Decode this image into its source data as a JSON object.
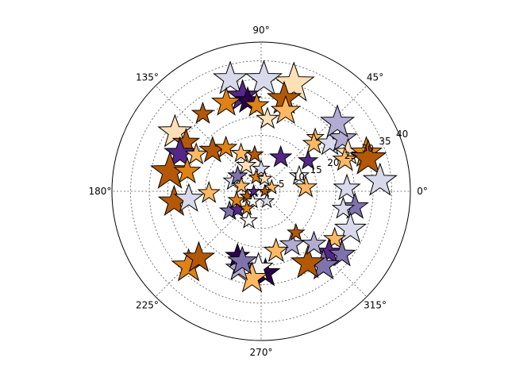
{
  "chart_data": {
    "type": "scatter",
    "projection": "polar",
    "marker": "star",
    "colormap": "PuOr",
    "r_lim": [
      0,
      40
    ],
    "r_ticks": [
      5,
      10,
      15,
      20,
      25,
      30,
      35,
      40
    ],
    "r_tick_labels": [
      "5",
      "10",
      "15",
      "20",
      "25",
      "30",
      "35",
      "40"
    ],
    "theta_ticks_deg": [
      0,
      45,
      90,
      135,
      180,
      225,
      270,
      315
    ],
    "theta_tick_labels": [
      "0°",
      "45°",
      "90°",
      "135°",
      "180°",
      "225°",
      "270°",
      "315°"
    ],
    "grid": true,
    "palette": [
      "#2d004b",
      "#542788",
      "#8073ac",
      "#b2abd2",
      "#d8daeb",
      "#f7f7f7",
      "#fee0b6",
      "#fdb863",
      "#e08214",
      "#b35806"
    ],
    "points": [
      {
        "theta": 73.1,
        "r": 30.2,
        "color": "#fee0b6",
        "size": 34
      },
      {
        "theta": 88.6,
        "r": 30.0,
        "color": "#d8daeb",
        "size": 30
      },
      {
        "theta": 105.4,
        "r": 31.2,
        "color": "#d8daeb",
        "size": 28
      },
      {
        "theta": 101.0,
        "r": 26.0,
        "color": "#542788",
        "size": 26
      },
      {
        "theta": 98.5,
        "r": 24.5,
        "color": "#2d004b",
        "size": 22
      },
      {
        "theta": 111.5,
        "r": 25.5,
        "color": "#e08214",
        "size": 24
      },
      {
        "theta": 93.0,
        "r": 23.0,
        "color": "#e08214",
        "size": 20
      },
      {
        "theta": 76.0,
        "r": 25.5,
        "color": "#b35806",
        "size": 28
      },
      {
        "theta": 73.0,
        "r": 22.5,
        "color": "#fdb863",
        "size": 24
      },
      {
        "theta": 85.0,
        "r": 19.5,
        "color": "#fee0b6",
        "size": 18
      },
      {
        "theta": 127.0,
        "r": 26.0,
        "color": "#b35806",
        "size": 18
      },
      {
        "theta": 145.6,
        "r": 28.0,
        "color": "#fee0b6",
        "size": 28
      },
      {
        "theta": 147.0,
        "r": 24.0,
        "color": "#b35806",
        "size": 22
      },
      {
        "theta": 155.0,
        "r": 24.0,
        "color": "#542788",
        "size": 26
      },
      {
        "theta": 150.5,
        "r": 20.0,
        "color": "#fdb863",
        "size": 18
      },
      {
        "theta": 140.0,
        "r": 17.0,
        "color": "#b35806",
        "size": 22
      },
      {
        "theta": 129.0,
        "r": 15.0,
        "color": "#e08214",
        "size": 18
      },
      {
        "theta": 168.0,
        "r": 25.0,
        "color": "#b35806",
        "size": 32
      },
      {
        "theta": 165.0,
        "r": 20.5,
        "color": "#e08214",
        "size": 22
      },
      {
        "theta": 187.0,
        "r": 23.5,
        "color": "#b35806",
        "size": 26
      },
      {
        "theta": 186.0,
        "r": 19.5,
        "color": "#d8daeb",
        "size": 24
      },
      {
        "theta": 182.0,
        "r": 14.0,
        "color": "#fdb863",
        "size": 18
      },
      {
        "theta": 160.0,
        "r": 8.0,
        "color": "#d8daeb",
        "size": 16
      },
      {
        "theta": 147.0,
        "r": 7.5,
        "color": "#8073ac",
        "size": 16
      },
      {
        "theta": 165.0,
        "r": 5.5,
        "color": "#fdb863",
        "size": 14
      },
      {
        "theta": 120.0,
        "r": 8.0,
        "color": "#fee0b6",
        "size": 16
      },
      {
        "theta": 118.0,
        "r": 11.5,
        "color": "#fdb863",
        "size": 16
      },
      {
        "theta": 100.0,
        "r": 10.0,
        "color": "#b35806",
        "size": 14
      },
      {
        "theta": 60.0,
        "r": 10.5,
        "color": "#542788",
        "size": 18
      },
      {
        "theta": 90.0,
        "r": 6.0,
        "color": "#d8daeb",
        "size": 14
      },
      {
        "theta": 110.0,
        "r": 4.0,
        "color": "#e08214",
        "size": 12
      },
      {
        "theta": 200.0,
        "r": 4.0,
        "color": "#b35806",
        "size": 12
      },
      {
        "theta": 230.0,
        "r": 3.5,
        "color": "#f7f7f7",
        "size": 12
      },
      {
        "theta": 300.0,
        "r": 3.0,
        "color": "#d8daeb",
        "size": 12
      },
      {
        "theta": 20.0,
        "r": 3.0,
        "color": "#fdb863",
        "size": 12
      },
      {
        "theta": 180.0,
        "r": 2.0,
        "color": "#542788",
        "size": 10
      },
      {
        "theta": 75.0,
        "r": 3.5,
        "color": "#fee0b6",
        "size": 12
      },
      {
        "theta": 0.0,
        "r": 1.0,
        "color": "#b35806",
        "size": 10
      },
      {
        "theta": 45.0,
        "r": 20.5,
        "color": "#fdb863",
        "size": 14
      },
      {
        "theta": 42.0,
        "r": 19.0,
        "color": "#fdb863",
        "size": 18
      },
      {
        "theta": 33.0,
        "r": 15.0,
        "color": "#542788",
        "size": 16
      },
      {
        "theta": 35.0,
        "r": 22.5,
        "color": "#d8daeb",
        "size": 22
      },
      {
        "theta": 33.0,
        "r": 26.0,
        "color": "#b2abd2",
        "size": 24
      },
      {
        "theta": 42.0,
        "r": 27.5,
        "color": "#b2abd2",
        "size": 28
      },
      {
        "theta": 24.0,
        "r": 25.5,
        "color": "#fee0b6",
        "size": 22
      },
      {
        "theta": 20.0,
        "r": 30.0,
        "color": "#e08214",
        "size": 26
      },
      {
        "theta": 17.0,
        "r": 30.0,
        "color": "#b35806",
        "size": 30
      },
      {
        "theta": 20.5,
        "r": 24.0,
        "color": "#fdb863",
        "size": 20
      },
      {
        "theta": 5.0,
        "r": 32.0,
        "color": "#d8daeb",
        "size": 28
      },
      {
        "theta": 2.0,
        "r": 23.0,
        "color": "#d8daeb",
        "size": 22
      },
      {
        "theta": 350.5,
        "r": 25.5,
        "color": "#8073ac",
        "size": 22
      },
      {
        "theta": 348.0,
        "r": 22.5,
        "color": "#d8daeb",
        "size": 18
      },
      {
        "theta": 337.0,
        "r": 26.0,
        "color": "#d8daeb",
        "size": 26
      },
      {
        "theta": 327.0,
        "r": 23.5,
        "color": "#fdb863",
        "size": 18
      },
      {
        "theta": 318.0,
        "r": 24.5,
        "color": "#542788",
        "size": 22
      },
      {
        "theta": 322.0,
        "r": 27.5,
        "color": "#8073ac",
        "size": 22
      },
      {
        "theta": 310.0,
        "r": 26.0,
        "color": "#8073ac",
        "size": 26
      },
      {
        "theta": 303.0,
        "r": 23.0,
        "color": "#b35806",
        "size": 28
      },
      {
        "theta": 315.0,
        "r": 20.0,
        "color": "#b2abd2",
        "size": 20
      },
      {
        "theta": 300.0,
        "r": 16.5,
        "color": "#b2abd2",
        "size": 20
      },
      {
        "theta": 310.0,
        "r": 14.5,
        "color": "#b35806",
        "size": 14
      },
      {
        "theta": 5.0,
        "r": 12.0,
        "color": "#fdb863",
        "size": 18
      },
      {
        "theta": 22.0,
        "r": 11.0,
        "color": "#f7f7f7",
        "size": 16
      },
      {
        "theta": 273.0,
        "r": 22.0,
        "color": "#2d004b",
        "size": 24
      },
      {
        "theta": 268.0,
        "r": 20.5,
        "color": "#f7f7f7",
        "size": 24
      },
      {
        "theta": 264.0,
        "r": 23.5,
        "color": "#fdb863",
        "size": 26
      },
      {
        "theta": 254.0,
        "r": 21.5,
        "color": "#b2abd2",
        "size": 22
      },
      {
        "theta": 250.0,
        "r": 18.5,
        "color": "#2d004b",
        "size": 20
      },
      {
        "theta": 255.0,
        "r": 19.5,
        "color": "#8073ac",
        "size": 24
      },
      {
        "theta": 284.0,
        "r": 16.5,
        "color": "#fdb863",
        "size": 20
      },
      {
        "theta": 226.0,
        "r": 28.0,
        "color": "#e08214",
        "size": 28
      },
      {
        "theta": 227.0,
        "r": 24.5,
        "color": "#b35806",
        "size": 26
      },
      {
        "theta": 212.0,
        "r": 10.0,
        "color": "#8073ac",
        "size": 16
      },
      {
        "theta": 218.0,
        "r": 8.0,
        "color": "#542788",
        "size": 14
      },
      {
        "theta": 247.0,
        "r": 8.5,
        "color": "#f7f7f7",
        "size": 14
      },
      {
        "theta": 230.0,
        "r": 6.0,
        "color": "#e08214",
        "size": 12
      },
      {
        "theta": 200.0,
        "r": 7.0,
        "color": "#e08214",
        "size": 14
      }
    ]
  }
}
